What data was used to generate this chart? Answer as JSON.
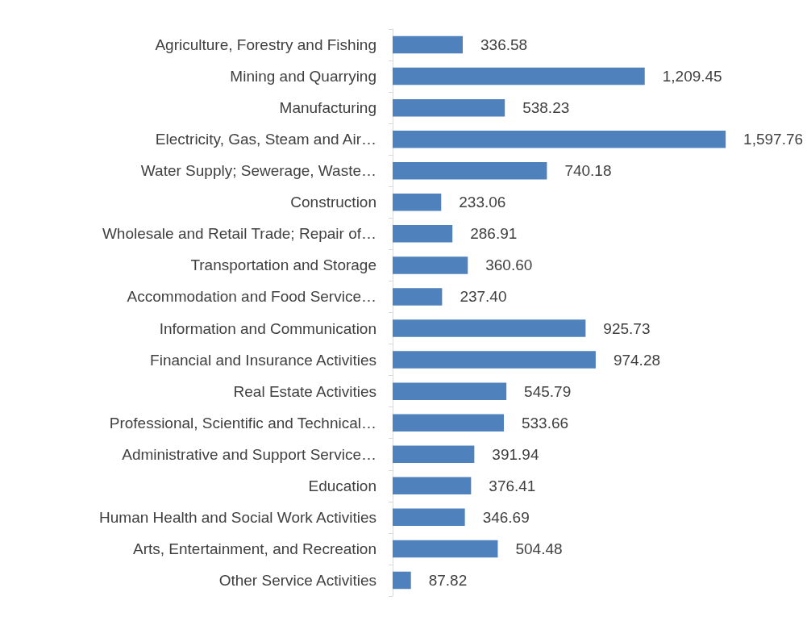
{
  "chart_data": {
    "type": "bar",
    "orientation": "horizontal",
    "color": "#4f81bd",
    "categories": [
      "Agriculture, Forestry and Fishing",
      "Mining and Quarrying",
      "Manufacturing",
      "Electricity, Gas, Steam and Air…",
      "Water Supply; Sewerage, Waste…",
      "Construction",
      "Wholesale and Retail Trade; Repair of…",
      "Transportation and Storage",
      "Accommodation and Food Service…",
      "Information and Communication",
      "Financial and Insurance Activities",
      "Real Estate Activities",
      "Professional, Scientific and Technical…",
      "Administrative and Support Service…",
      "Education",
      "Human Health and Social Work Activities",
      "Arts, Entertainment, and Recreation",
      "Other Service Activities"
    ],
    "values": [
      336.58,
      1209.45,
      538.23,
      1597.76,
      740.18,
      233.06,
      286.91,
      360.6,
      237.4,
      925.73,
      974.28,
      545.79,
      533.66,
      391.94,
      376.41,
      346.69,
      504.48,
      87.82
    ],
    "value_labels": [
      "336.58",
      "1,209.45",
      "538.23",
      "1,597.76",
      "740.18",
      "233.06",
      "286.91",
      "360.60",
      "237.40",
      "925.73",
      "974.28",
      "545.79",
      "533.66",
      "391.94",
      "376.41",
      "346.69",
      "504.48",
      "87.82"
    ],
    "grid": false
  }
}
